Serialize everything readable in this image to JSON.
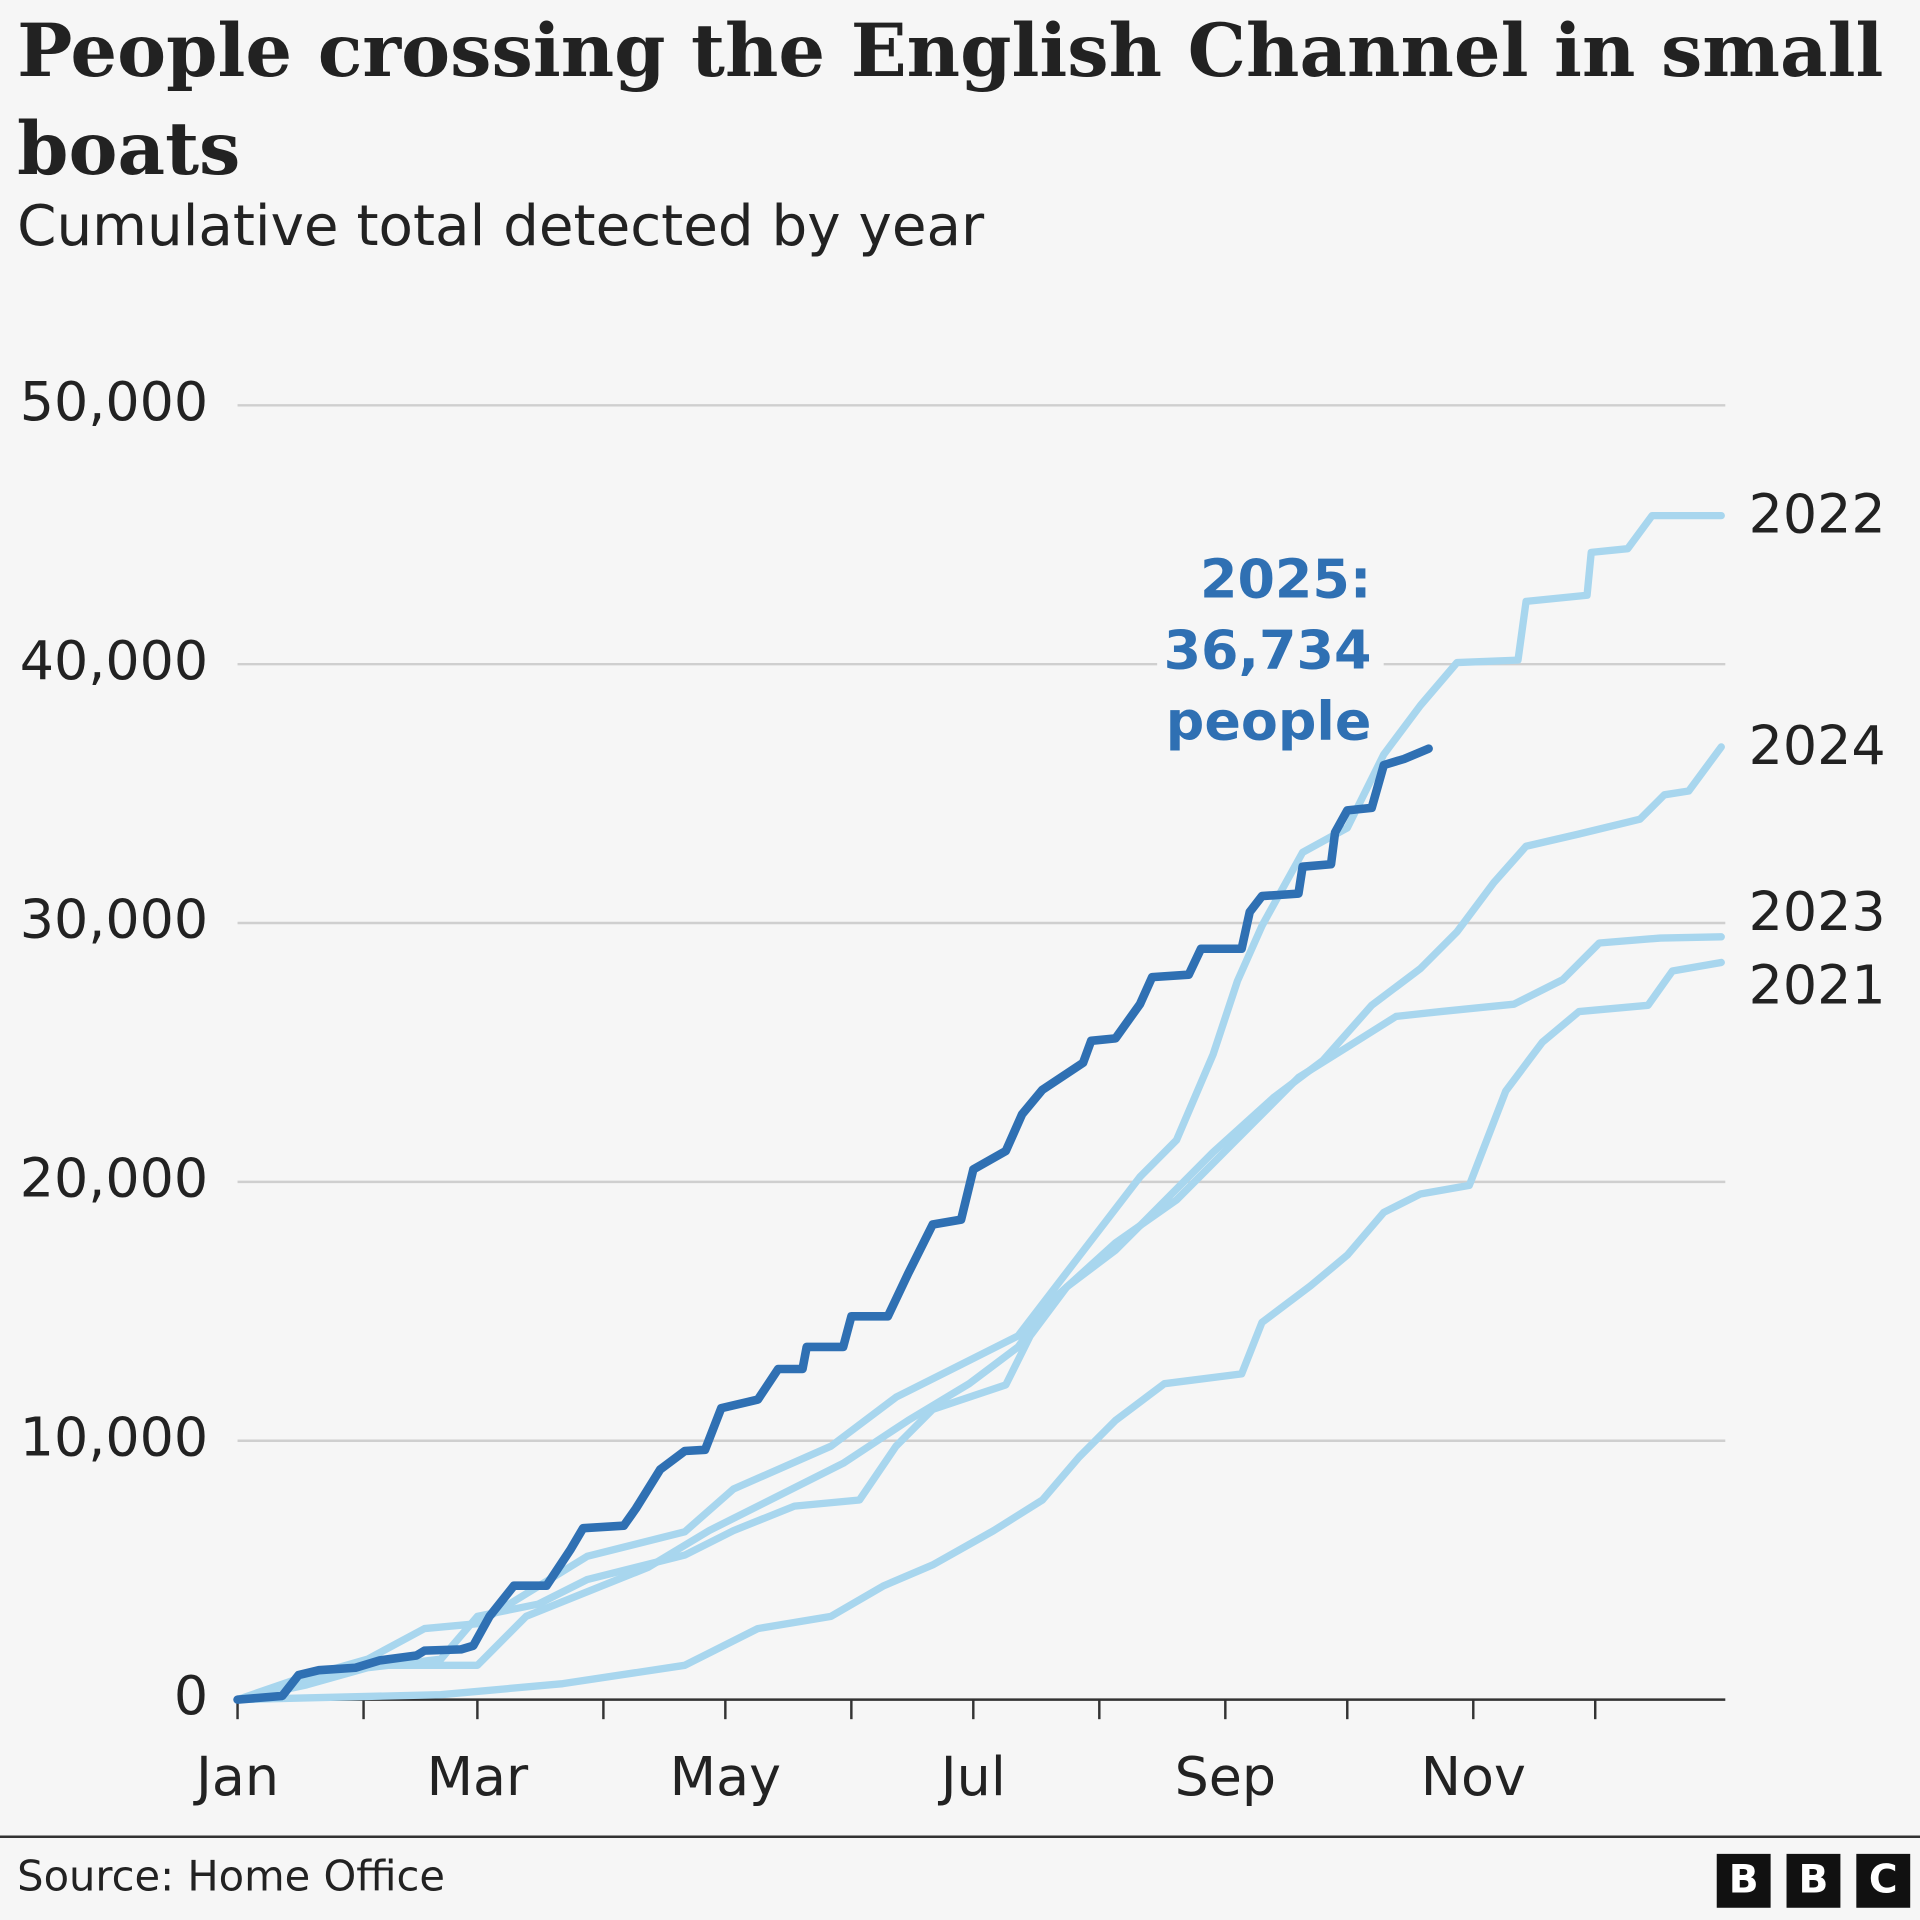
{
  "chart_data": {
    "type": "line",
    "title": [
      "People crossing the English Channel in small",
      "boats"
    ],
    "subtitle": "Cumulative total detected by year",
    "source": "Source: Home Office",
    "logo": [
      "B",
      "B",
      "C"
    ],
    "xlim": [
      1,
      367
    ],
    "xticks": [
      {
        "value": 1,
        "label": "Jan"
      },
      {
        "value": 60,
        "label": "Mar"
      },
      {
        "value": 121,
        "label": "May"
      },
      {
        "value": 182,
        "label": "Jul"
      },
      {
        "value": 244,
        "label": "Sep"
      },
      {
        "value": 305,
        "label": "Nov"
      }
    ],
    "xminor_ticks": [
      32,
      91,
      152,
      213,
      274,
      335
    ],
    "ylim": [
      0,
      50000
    ],
    "yticks": [
      0,
      {
        "value": 10000,
        "label": "10,000"
      },
      {
        "value": 20000,
        "label": "20,000"
      },
      {
        "value": 30000,
        "label": "30,000"
      },
      {
        "value": 40000,
        "label": "40,000"
      },
      {
        "value": 50000,
        "label": "50,000"
      }
    ],
    "grid": true,
    "annotation": [
      "36,734",
      "people"
    ],
    "series": [
      {
        "name": "2022",
        "color": "#a8d6ee",
        "label": "end",
        "x": [
          1,
          15,
          33,
          47,
          60,
          87,
          111,
          123,
          147,
          163,
          178,
          193,
          208,
          223,
          232,
          241,
          247,
          253,
          263,
          274,
          283,
          292,
          301,
          316,
          318,
          333,
          334,
          343,
          349,
          366
        ],
        "values": [
          0,
          757,
          1561,
          2744,
          2933,
          5534,
          6480,
          8135,
          9791,
          11683,
          12865,
          14048,
          17122,
          20196,
          21615,
          24926,
          27764,
          29893,
          32731,
          33677,
          36515,
          38407,
          40062,
          40157,
          42427,
          42664,
          44319,
          44461,
          45738,
          45740
        ]
      },
      {
        "name": "2024",
        "color": "#a8d6ee",
        "label": "end",
        "x": [
          1,
          18,
          33,
          51,
          60,
          75,
          87,
          111,
          123,
          138,
          154,
          163,
          172,
          190,
          196,
          205,
          217,
          229,
          241,
          256,
          268,
          280,
          292,
          301,
          310,
          318,
          331,
          346,
          352,
          358,
          366
        ],
        "values": [
          0,
          568,
          1230,
          1561,
          3216,
          3689,
          4635,
          5581,
          6527,
          7473,
          7709,
          9791,
          11210,
          12156,
          14048,
          15940,
          17359,
          19251,
          21143,
          23272,
          24691,
          26820,
          28239,
          29658,
          31550,
          32968,
          33441,
          34009,
          34955,
          35097,
          36801
        ]
      },
      {
        "name": "2023",
        "color": "#a8d6ee",
        "label": "end",
        "x": [
          1,
          15,
          33,
          60,
          72,
          87,
          102,
          117,
          132,
          150,
          166,
          181,
          193,
          202,
          217,
          232,
          247,
          262,
          274,
          286,
          297,
          315,
          327,
          336,
          351,
          366
        ],
        "values": [
          0,
          615,
          1324,
          1324,
          3216,
          4162,
          5108,
          6527,
          7709,
          9128,
          10783,
          12202,
          13623,
          15515,
          17643,
          19298,
          21663,
          24028,
          25210,
          26393,
          26582,
          26866,
          27812,
          29231,
          29420,
          29467
        ]
      },
      {
        "name": "2021",
        "color": "#a8d6ee",
        "label": "end",
        "x": [
          1,
          51,
          81,
          111,
          129,
          147,
          160,
          172,
          187,
          199,
          208,
          217,
          229,
          248,
          253,
          265,
          274,
          283,
          292,
          304,
          313,
          322,
          331,
          348,
          354,
          366
        ],
        "values": [
          0,
          189,
          615,
          1324,
          2744,
          3216,
          4399,
          5203,
          6527,
          7709,
          9365,
          10783,
          12202,
          12581,
          14568,
          15987,
          17169,
          18824,
          19534,
          19865,
          23508,
          25399,
          26582,
          26819,
          28144,
          28475
        ]
      },
      {
        "name": "2025:",
        "color": "#2f70b3",
        "label": "annotation",
        "x": [
          1,
          12,
          16,
          21,
          30,
          36,
          45,
          47,
          56,
          59,
          63,
          69,
          77,
          83,
          86,
          96,
          99,
          105,
          111,
          116,
          120,
          129,
          134,
          140,
          141,
          150,
          152,
          161,
          166,
          172,
          179,
          182,
          190,
          194,
          199,
          209,
          211,
          217,
          223,
          226,
          235,
          238,
          248,
          250,
          253,
          262,
          263,
          270,
          271,
          274,
          280,
          283,
          288,
          294
        ],
        "values": [
          0,
          142,
          946,
          1135,
          1230,
          1514,
          1703,
          1892,
          1940,
          2081,
          3216,
          4399,
          4399,
          5818,
          6623,
          6717,
          7379,
          8893,
          9603,
          9650,
          11258,
          11589,
          12772,
          12772,
          13623,
          13623,
          14806,
          14806,
          16462,
          18354,
          18543,
          20482,
          21192,
          22611,
          23557,
          24598,
          25449,
          25544,
          26868,
          27909,
          28004,
          29007,
          29007,
          30426,
          31041,
          31135,
          32176,
          32270,
          33500,
          34352,
          34446,
          36102,
          36339,
          36734
        ]
      }
    ]
  }
}
